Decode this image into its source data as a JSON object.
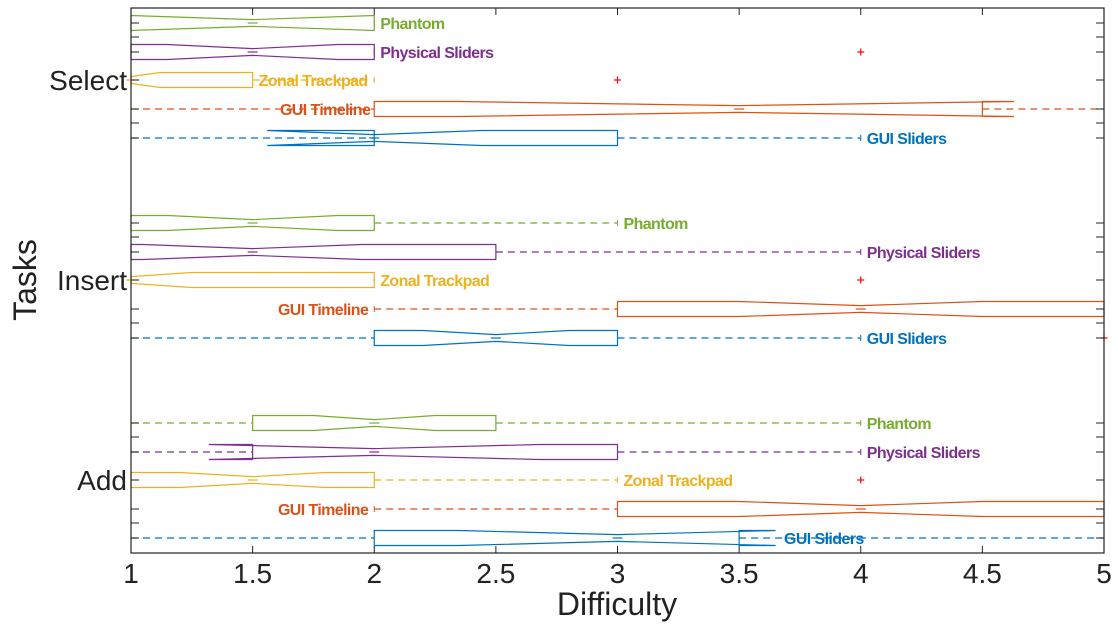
{
  "chart_data": {
    "type": "box",
    "orientation": "horizontal",
    "notched": true,
    "xlabel": "Difficulty",
    "ylabel": "Tasks",
    "xlim": [
      1,
      5
    ],
    "xticks": [
      "1",
      "1.5",
      "2",
      "2.5",
      "3",
      "3.5",
      "4",
      "4.5",
      "5"
    ],
    "categories": [
      "Select",
      "Insert",
      "Add"
    ],
    "grid": false,
    "legend": "none",
    "outlier_marker": "+",
    "outlier_color": "#ff0000",
    "groups": [
      {
        "task": "Select",
        "boxes": [
          {
            "series": "Phantom",
            "color": "#77ac30",
            "whisker_low": 1,
            "q1": 1,
            "median": 1.5,
            "q3": 2,
            "whisker_high": 2,
            "notch_low": 1,
            "notch_high": 2,
            "outliers": []
          },
          {
            "series": "Physical Sliders",
            "color": "#7e2f8e",
            "whisker_low": 1,
            "q1": 1,
            "median": 1.5,
            "q3": 2,
            "whisker_high": 2,
            "notch_low": 1.15,
            "notch_high": 1.85,
            "outliers": [
              4
            ]
          },
          {
            "series": "Zonal Trackpad",
            "color": "#edb120",
            "whisker_low": 1,
            "q1": 1,
            "median": 1,
            "q3": 1.5,
            "whisker_high": 2,
            "notch_low": 1,
            "notch_high": 1.12,
            "outliers": [
              3
            ]
          },
          {
            "series": "GUI Timeline",
            "color": "#d95319",
            "whisker_low": 1,
            "q1": 2,
            "median": 3.5,
            "q3": 4.5,
            "whisker_high": 5,
            "notch_low": 2.35,
            "notch_high": 4.63,
            "outliers": []
          },
          {
            "series": "GUI Sliders",
            "color": "#0072bd",
            "whisker_low": 1,
            "q1": 2,
            "median": 2,
            "q3": 3,
            "whisker_high": 4,
            "notch_low": 1.56,
            "notch_high": 2.44,
            "outliers": []
          }
        ]
      },
      {
        "task": "Insert",
        "boxes": [
          {
            "series": "Phantom",
            "color": "#77ac30",
            "whisker_low": 1,
            "q1": 1,
            "median": 1.5,
            "q3": 2,
            "whisker_high": 3,
            "notch_low": 1.15,
            "notch_high": 1.85,
            "outliers": []
          },
          {
            "series": "Physical Sliders",
            "color": "#7e2f8e",
            "whisker_low": 1,
            "q1": 1,
            "median": 1.5,
            "q3": 2.5,
            "whisker_high": 4,
            "notch_low": 1.05,
            "notch_high": 1.95,
            "outliers": []
          },
          {
            "series": "Zonal Trackpad",
            "color": "#edb120",
            "whisker_low": 1,
            "q1": 1,
            "median": 1,
            "q3": 2,
            "whisker_high": 2,
            "notch_low": 1,
            "notch_high": 1.25,
            "outliers": [
              4
            ]
          },
          {
            "series": "GUI Timeline",
            "color": "#d95319",
            "whisker_low": 2,
            "q1": 3,
            "median": 4,
            "q3": 5,
            "whisker_high": 5,
            "notch_low": 3.5,
            "notch_high": 4.5,
            "outliers": []
          },
          {
            "series": "GUI Sliders",
            "color": "#0072bd",
            "whisker_low": 1,
            "q1": 2,
            "median": 2.5,
            "q3": 3,
            "whisker_high": 4,
            "notch_low": 2.2,
            "notch_high": 2.8,
            "outliers": [
              5
            ]
          }
        ]
      },
      {
        "task": "Add",
        "boxes": [
          {
            "series": "Phantom",
            "color": "#77ac30",
            "whisker_low": 1,
            "q1": 1.5,
            "median": 2,
            "q3": 2.5,
            "whisker_high": 4,
            "notch_low": 1.75,
            "notch_high": 2.25,
            "outliers": []
          },
          {
            "series": "Physical Sliders",
            "color": "#7e2f8e",
            "whisker_low": 1,
            "q1": 1.5,
            "median": 2,
            "q3": 3,
            "whisker_high": 4,
            "notch_low": 1.32,
            "notch_high": 2.68,
            "outliers": []
          },
          {
            "series": "Zonal Trackpad",
            "color": "#edb120",
            "whisker_low": 1,
            "q1": 1,
            "median": 1.5,
            "q3": 2,
            "whisker_high": 3,
            "notch_low": 1.2,
            "notch_high": 1.8,
            "outliers": [
              4
            ]
          },
          {
            "series": "GUI Timeline",
            "color": "#d95319",
            "whisker_low": 2,
            "q1": 3,
            "median": 4,
            "q3": 5,
            "whisker_high": 5,
            "notch_low": 3.5,
            "notch_high": 4.5,
            "outliers": []
          },
          {
            "series": "GUI Sliders",
            "color": "#0072bd",
            "whisker_low": 1,
            "q1": 2,
            "median": 3,
            "q3": 3.5,
            "whisker_high": 5,
            "notch_low": 2.35,
            "notch_high": 3.65,
            "outliers": []
          }
        ]
      }
    ]
  }
}
